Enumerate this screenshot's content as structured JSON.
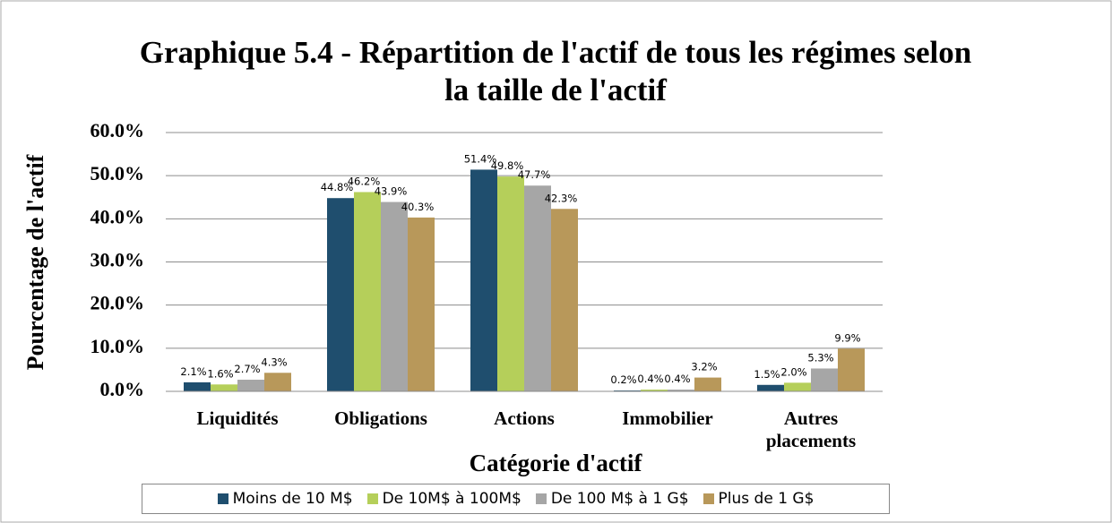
{
  "chart_data": {
    "type": "bar",
    "title": "Graphique 5.4 - Répartition de l'actif de tous les régimes selon la taille de l'actif",
    "x_label": "Catégorie d'actif",
    "y_label": "Pourcentage de l'actif",
    "categories": [
      "Liquidités",
      "Obligations",
      "Actions",
      "Immobilier",
      "Autres placements"
    ],
    "series": [
      {
        "name": "Moins de 10 M$",
        "color": "#1f4e6e",
        "values": [
          2.1,
          44.8,
          51.4,
          0.2,
          1.5
        ],
        "value_labels": [
          "2.1%",
          "44.8%",
          "51.4%",
          "0.2%",
          "1.5%"
        ]
      },
      {
        "name": "De 10M$ à 100M$",
        "color": "#b5cf5a",
        "values": [
          1.6,
          46.2,
          49.8,
          0.4,
          2.0
        ],
        "value_labels": [
          "1.6%",
          "46.2%",
          "49.8%",
          "0.4%",
          "2.0%"
        ]
      },
      {
        "name": "De 100 M$ à 1 G$",
        "color": "#a6a6a6",
        "values": [
          2.7,
          43.9,
          47.7,
          0.4,
          5.3
        ],
        "value_labels": [
          "2.7%",
          "43.9%",
          "47.7%",
          "0.4%",
          "5.3%"
        ]
      },
      {
        "name": "Plus de 1 G$",
        "color": "#b8985a",
        "values": [
          4.3,
          40.3,
          42.3,
          3.2,
          9.9
        ],
        "value_labels": [
          "4.3%",
          "40.3%",
          "42.3%",
          "3.2%",
          "9.9%"
        ]
      }
    ],
    "ylim": [
      0,
      60
    ],
    "yticks": [
      {
        "value": 0,
        "label": "0.0%"
      },
      {
        "value": 10,
        "label": "10.0%"
      },
      {
        "value": 20,
        "label": "20.0%"
      },
      {
        "value": 30,
        "label": "30.0%"
      },
      {
        "value": 40,
        "label": "40.0%"
      },
      {
        "value": 50,
        "label": "50.0%"
      },
      {
        "value": 60,
        "label": "60.0%"
      }
    ],
    "grid": true
  }
}
